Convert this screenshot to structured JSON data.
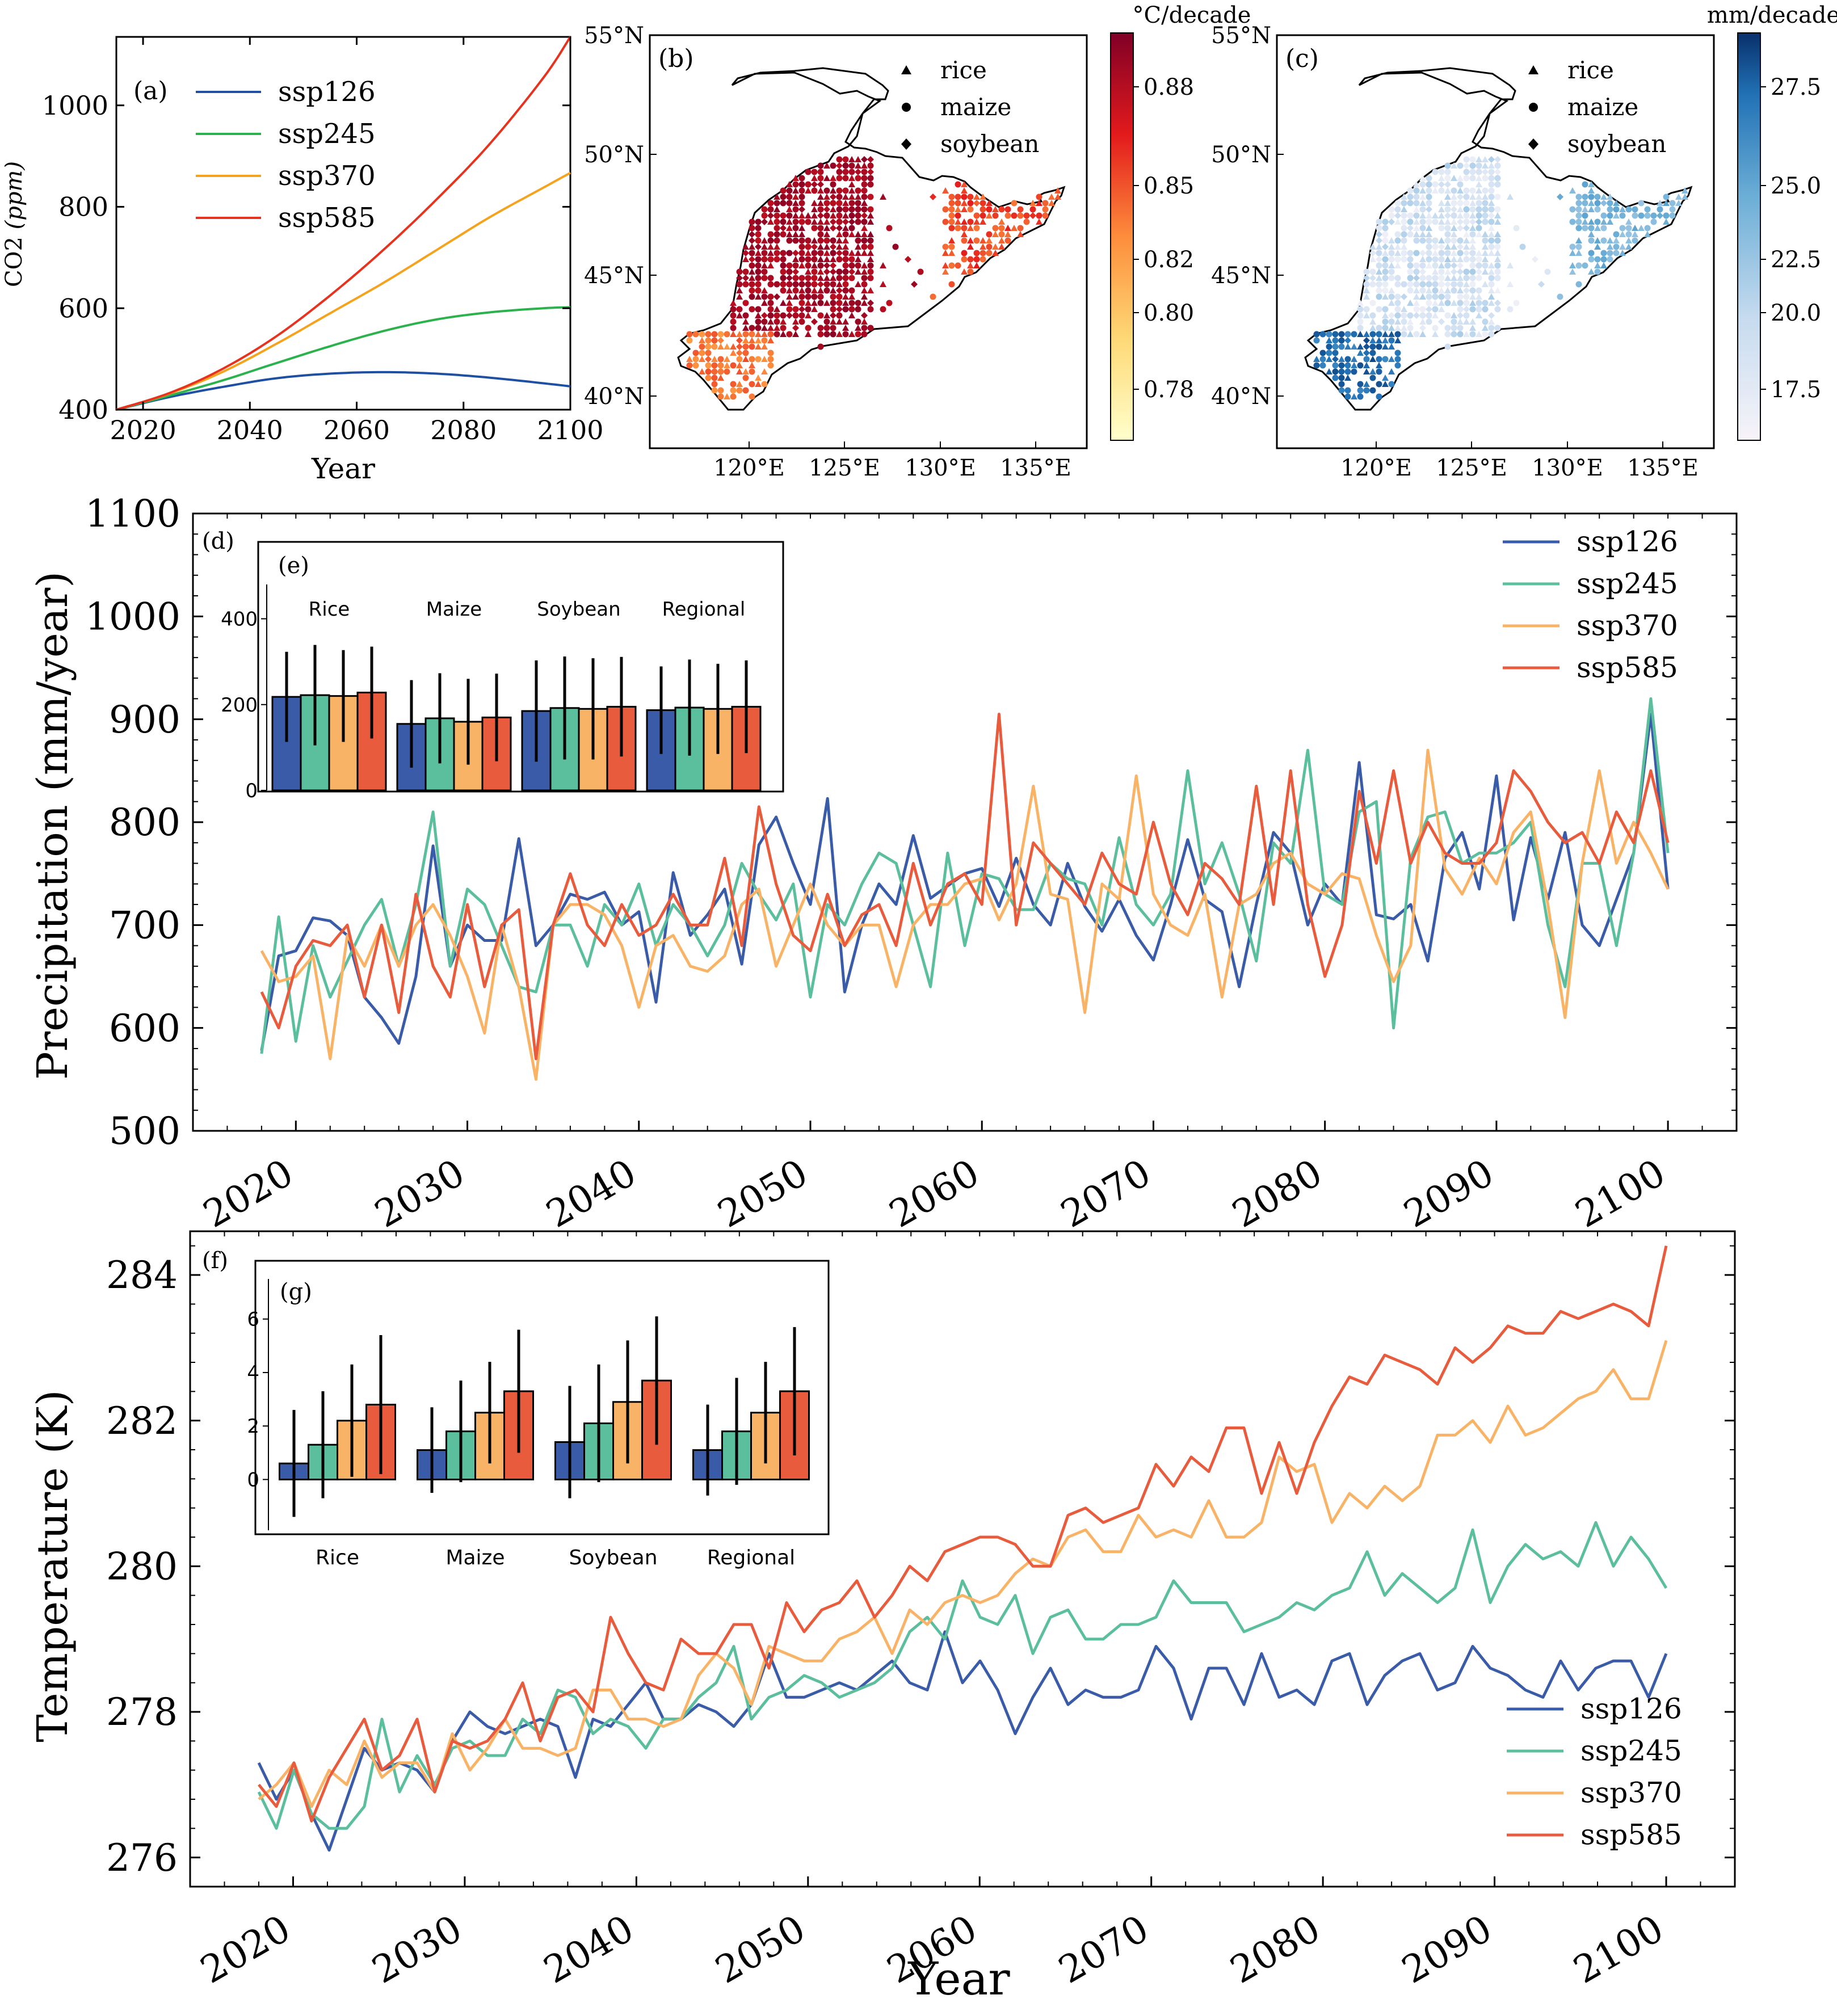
{
  "colors": {
    "ssp126": "#3A5CA8",
    "ssp245": "#5BBE9C",
    "ssp370": "#F9B366",
    "ssp585": "#E85B3C",
    "panelA_ssp126": "#1F4FA3",
    "panelA_ssp245": "#2BB24C",
    "panelA_ssp370": "#F5A21C",
    "panelA_ssp585": "#E8321E",
    "map_outline": "#000000"
  },
  "panels": {
    "a": {
      "tag": "(a)",
      "xlabel": "Year",
      "ylabel_main": "CO2 ",
      "ylabel_unit": "(ppm)"
    },
    "b": {
      "tag": "(b)",
      "colorbar_title": "°C/decade",
      "colorbar_ticks": [
        "0.88",
        "0.85",
        "0.82",
        "0.80",
        "0.78"
      ],
      "lat_ticks": [
        "55°N",
        "50°N",
        "45°N",
        "40°N"
      ],
      "lon_ticks": [
        "120°E",
        "125°E",
        "130°E",
        "135°E"
      ],
      "legend": [
        {
          "marker": "triangle",
          "label": "rice"
        },
        {
          "marker": "circle",
          "label": "maize"
        },
        {
          "marker": "diamond",
          "label": "soybean"
        }
      ]
    },
    "c": {
      "tag": "(c)",
      "colorbar_title": "mm/decade",
      "colorbar_ticks": [
        "27.5",
        "25.0",
        "22.5",
        "20.0",
        "17.5"
      ],
      "lat_ticks": [
        "55°N",
        "50°N",
        "45°N",
        "40°N"
      ],
      "lon_ticks": [
        "120°E",
        "125°E",
        "130°E",
        "135°E"
      ],
      "legend": [
        {
          "marker": "triangle",
          "label": "rice"
        },
        {
          "marker": "circle",
          "label": "maize"
        },
        {
          "marker": "diamond",
          "label": "soybean"
        }
      ]
    },
    "d": {
      "tag": "(d)",
      "ylabel": "Precipitation (mm/year)"
    },
    "e": {
      "tag": "(e)"
    },
    "f": {
      "tag": "(f)",
      "ylabel": "Temperature (K)",
      "xlabel": "Year"
    },
    "g": {
      "tag": "(g)"
    }
  },
  "chart_data": [
    {
      "id": "a",
      "type": "line",
      "xlabel": "Year",
      "ylabel": "CO2 (ppm)",
      "xlim": [
        2015,
        2100
      ],
      "ylim": [
        400,
        1135
      ],
      "xticks": [
        2020,
        2040,
        2060,
        2080,
        2100
      ],
      "yticks": [
        400,
        600,
        800,
        1000
      ],
      "x": [
        2015,
        2025,
        2035,
        2045,
        2055,
        2065,
        2075,
        2085,
        2095,
        2100
      ],
      "series": [
        {
          "name": "ssp126",
          "values": [
            400,
            425,
            445,
            462,
            471,
            474,
            471,
            463,
            452,
            446
          ]
        },
        {
          "name": "ssp245",
          "values": [
            400,
            428,
            458,
            492,
            525,
            555,
            578,
            592,
            600,
            602
          ]
        },
        {
          "name": "ssp370",
          "values": [
            400,
            432,
            475,
            530,
            590,
            650,
            715,
            780,
            838,
            867
          ]
        },
        {
          "name": "ssp585",
          "values": [
            400,
            433,
            481,
            545,
            625,
            715,
            815,
            925,
            1055,
            1135
          ]
        }
      ],
      "legend": "upper left"
    },
    {
      "id": "d",
      "type": "line",
      "ylabel": "Precipitation (mm/year)",
      "xlim": [
        2014,
        2104
      ],
      "ylim": [
        500,
        1100
      ],
      "xticks": [
        2020,
        2030,
        2040,
        2050,
        2060,
        2070,
        2080,
        2090,
        2100
      ],
      "yticks": [
        500,
        600,
        700,
        800,
        900,
        1000,
        1100
      ],
      "x_start": 2018,
      "x_end": 2100,
      "series": [
        {
          "name": "ssp126",
          "values": [
            578,
            670,
            675,
            707,
            704,
            690,
            630,
            610,
            585,
            650,
            777,
            660,
            700,
            685,
            685,
            784,
            680,
            700,
            730,
            725,
            732,
            700,
            713,
            625,
            751,
            690,
            710,
            735,
            662,
            778,
            805,
            760,
            720,
            823,
            635,
            700,
            740,
            720,
            787,
            726,
            738,
            750,
            755,
            718,
            765,
            720,
            700,
            760,
            718,
            694,
            725,
            690,
            666,
            720,
            783,
            725,
            713,
            640,
            720,
            790,
            770,
            700,
            740,
            720,
            858,
            710,
            706,
            720,
            665,
            765,
            790,
            735,
            845,
            705,
            785,
            725,
            790,
            700,
            680,
            725,
            770,
            905,
            735
          ]
        },
        {
          "name": "ssp245",
          "values": [
            575,
            708,
            587,
            680,
            630,
            665,
            700,
            725,
            660,
            720,
            810,
            660,
            735,
            720,
            680,
            640,
            635,
            700,
            700,
            660,
            720,
            700,
            740,
            680,
            720,
            700,
            670,
            700,
            760,
            730,
            705,
            740,
            630,
            720,
            700,
            740,
            770,
            760,
            700,
            640,
            770,
            680,
            750,
            745,
            715,
            715,
            760,
            745,
            740,
            700,
            785,
            720,
            700,
            730,
            850,
            740,
            780,
            730,
            665,
            780,
            760,
            870,
            730,
            720,
            810,
            820,
            600,
            765,
            805,
            810,
            760,
            770,
            770,
            780,
            800,
            700,
            640,
            760,
            760,
            680,
            770,
            920,
            770
          ]
        },
        {
          "name": "ssp370",
          "values": [
            675,
            645,
            650,
            670,
            570,
            690,
            660,
            700,
            660,
            700,
            720,
            690,
            650,
            595,
            700,
            640,
            550,
            700,
            720,
            720,
            710,
            680,
            620,
            680,
            690,
            660,
            655,
            670,
            720,
            735,
            660,
            700,
            740,
            700,
            680,
            700,
            700,
            640,
            700,
            720,
            720,
            740,
            745,
            705,
            740,
            835,
            730,
            725,
            615,
            740,
            725,
            845,
            730,
            700,
            690,
            730,
            630,
            720,
            730,
            760,
            770,
            740,
            730,
            750,
            745,
            690,
            645,
            680,
            870,
            755,
            730,
            765,
            740,
            790,
            810,
            720,
            610,
            760,
            850,
            760,
            800,
            770,
            735
          ]
        },
        {
          "name": "ssp585",
          "values": [
            635,
            600,
            660,
            685,
            680,
            700,
            630,
            700,
            615,
            730,
            660,
            630,
            720,
            640,
            700,
            715,
            570,
            700,
            750,
            700,
            680,
            720,
            690,
            700,
            730,
            700,
            700,
            765,
            680,
            815,
            740,
            690,
            675,
            730,
            680,
            710,
            720,
            680,
            760,
            700,
            740,
            750,
            720,
            905,
            700,
            780,
            760,
            740,
            720,
            770,
            740,
            730,
            800,
            740,
            710,
            760,
            745,
            720,
            835,
            720,
            850,
            720,
            650,
            700,
            830,
            760,
            850,
            760,
            800,
            770,
            760,
            760,
            780,
            850,
            830,
            800,
            780,
            790,
            760,
            810,
            780,
            850,
            780
          ]
        }
      ],
      "legend": "upper right"
    },
    {
      "id": "e",
      "type": "bar",
      "categories": [
        "Rice",
        "Maize",
        "Soybean",
        "Regional"
      ],
      "ylim": [
        0,
        480
      ],
      "yticks": [
        0,
        200,
        400
      ],
      "series": [
        {
          "name": "ssp126",
          "values": [
            218,
            155,
            185,
            187
          ],
          "errors": [
            105,
            102,
            118,
            102
          ]
        },
        {
          "name": "ssp245",
          "values": [
            222,
            168,
            192,
            193
          ],
          "errors": [
            117,
            105,
            120,
            112
          ]
        },
        {
          "name": "ssp370",
          "values": [
            220,
            160,
            190,
            190
          ],
          "errors": [
            107,
            100,
            118,
            105
          ]
        },
        {
          "name": "ssp585",
          "values": [
            228,
            170,
            195,
            195
          ],
          "errors": [
            107,
            102,
            116,
            108
          ]
        }
      ]
    },
    {
      "id": "f",
      "type": "line",
      "ylabel": "Temperature (K)",
      "xlabel": "Year",
      "xlim": [
        2014,
        2104
      ],
      "ylim": [
        275.6,
        284.6
      ],
      "xticks": [
        2020,
        2030,
        2040,
        2050,
        2060,
        2070,
        2080,
        2090,
        2100
      ],
      "yticks": [
        276,
        278,
        280,
        282,
        284
      ],
      "x_start": 2018,
      "x_end": 2100,
      "series": [
        {
          "name": "ssp126",
          "values": [
            277.3,
            276.8,
            277.2,
            276.6,
            276.1,
            276.8,
            277.5,
            277.2,
            277.3,
            277.2,
            276.9,
            277.6,
            278.0,
            277.8,
            277.7,
            277.8,
            277.9,
            277.8,
            277.1,
            277.9,
            277.8,
            278.1,
            278.4,
            277.9,
            277.9,
            278.1,
            278.0,
            277.8,
            278.1,
            278.8,
            278.2,
            278.2,
            278.3,
            278.4,
            278.3,
            278.5,
            278.7,
            278.4,
            278.3,
            279.1,
            278.4,
            278.7,
            278.3,
            277.7,
            278.2,
            278.6,
            278.1,
            278.3,
            278.2,
            278.2,
            278.3,
            278.9,
            278.6,
            277.9,
            278.6,
            278.6,
            278.1,
            278.8,
            278.2,
            278.3,
            278.1,
            278.7,
            278.8,
            278.1,
            278.5,
            278.7,
            278.8,
            278.3,
            278.4,
            278.9,
            278.6,
            278.5,
            278.3,
            278.2,
            278.7,
            278.3,
            278.6,
            278.7,
            278.7,
            278.2,
            278.8
          ]
        },
        {
          "name": "ssp245",
          "values": [
            276.9,
            276.4,
            277.2,
            276.6,
            276.4,
            276.4,
            276.7,
            277.9,
            276.9,
            277.4,
            277.0,
            277.5,
            277.6,
            277.4,
            277.4,
            277.9,
            277.7,
            278.3,
            278.2,
            277.7,
            277.9,
            277.8,
            277.5,
            277.9,
            277.9,
            278.2,
            278.4,
            278.9,
            277.9,
            278.2,
            278.3,
            278.5,
            278.4,
            278.2,
            278.3,
            278.4,
            278.6,
            279.1,
            279.3,
            279.0,
            279.8,
            279.3,
            279.2,
            279.6,
            278.8,
            279.3,
            279.4,
            279.0,
            279.0,
            279.2,
            279.2,
            279.3,
            279.8,
            279.5,
            279.5,
            279.5,
            279.1,
            279.2,
            279.3,
            279.5,
            279.4,
            279.6,
            279.7,
            280.2,
            279.6,
            279.9,
            279.7,
            279.5,
            279.7,
            280.5,
            279.5,
            280.0,
            280.3,
            280.1,
            280.2,
            280.0,
            280.6,
            280.0,
            280.4,
            280.1,
            279.7
          ]
        },
        {
          "name": "ssp370",
          "values": [
            276.8,
            277.0,
            277.3,
            276.7,
            277.2,
            277.0,
            277.6,
            277.1,
            277.3,
            277.3,
            276.9,
            277.7,
            277.2,
            277.5,
            277.9,
            277.5,
            277.5,
            277.4,
            277.5,
            278.3,
            278.3,
            277.9,
            277.9,
            277.8,
            277.9,
            278.5,
            278.8,
            278.6,
            278.1,
            278.9,
            278.8,
            278.7,
            278.7,
            279.0,
            279.1,
            279.3,
            278.8,
            279.4,
            279.2,
            279.5,
            279.6,
            279.5,
            279.6,
            279.9,
            280.1,
            280.0,
            280.4,
            280.5,
            280.2,
            280.2,
            280.7,
            280.4,
            280.5,
            280.4,
            280.9,
            280.4,
            280.4,
            280.6,
            281.5,
            281.3,
            281.4,
            280.6,
            281.0,
            280.8,
            281.1,
            280.9,
            281.1,
            281.8,
            281.8,
            282.0,
            281.7,
            282.2,
            281.8,
            281.9,
            282.1,
            282.3,
            282.4,
            282.7,
            282.3,
            282.3,
            283.1
          ]
        },
        {
          "name": "ssp585",
          "values": [
            277.0,
            276.7,
            277.3,
            276.5,
            277.1,
            277.5,
            277.9,
            277.2,
            277.4,
            277.9,
            276.9,
            277.6,
            277.5,
            277.6,
            277.9,
            278.4,
            277.6,
            278.2,
            278.3,
            278.0,
            279.3,
            278.8,
            278.4,
            278.3,
            279.0,
            278.8,
            278.8,
            279.2,
            279.2,
            278.6,
            279.5,
            279.1,
            279.4,
            279.5,
            279.8,
            279.3,
            279.6,
            280.0,
            279.8,
            280.2,
            280.3,
            280.4,
            280.4,
            280.3,
            280.0,
            280.0,
            280.7,
            280.8,
            280.6,
            280.7,
            280.8,
            281.4,
            281.1,
            281.5,
            281.3,
            281.9,
            281.9,
            281.0,
            281.7,
            281.0,
            281.7,
            282.2,
            282.6,
            282.5,
            282.9,
            282.8,
            282.7,
            282.5,
            283.0,
            282.8,
            283.0,
            283.3,
            283.2,
            283.2,
            283.5,
            283.4,
            283.5,
            283.6,
            283.5,
            283.3,
            284.4
          ]
        }
      ],
      "legend": "lower right"
    },
    {
      "id": "g",
      "type": "bar",
      "categories": [
        "Rice",
        "Maize",
        "Soybean",
        "Regional"
      ],
      "ylim": [
        -1.9,
        7.5
      ],
      "yticks": [
        0,
        2,
        4,
        6
      ],
      "series": [
        {
          "name": "ssp126",
          "values": [
            0.6,
            1.1,
            1.4,
            1.1
          ],
          "errors": [
            2.0,
            1.6,
            2.1,
            1.7
          ]
        },
        {
          "name": "ssp245",
          "values": [
            1.3,
            1.8,
            2.1,
            1.8
          ],
          "errors": [
            2.0,
            1.9,
            2.2,
            2.0
          ]
        },
        {
          "name": "ssp370",
          "values": [
            2.2,
            2.5,
            2.9,
            2.5
          ],
          "errors": [
            2.1,
            1.9,
            2.3,
            1.9
          ]
        },
        {
          "name": "ssp585",
          "values": [
            2.8,
            3.3,
            3.7,
            3.3
          ],
          "errors": [
            2.6,
            2.3,
            2.4,
            2.4
          ]
        }
      ]
    }
  ]
}
